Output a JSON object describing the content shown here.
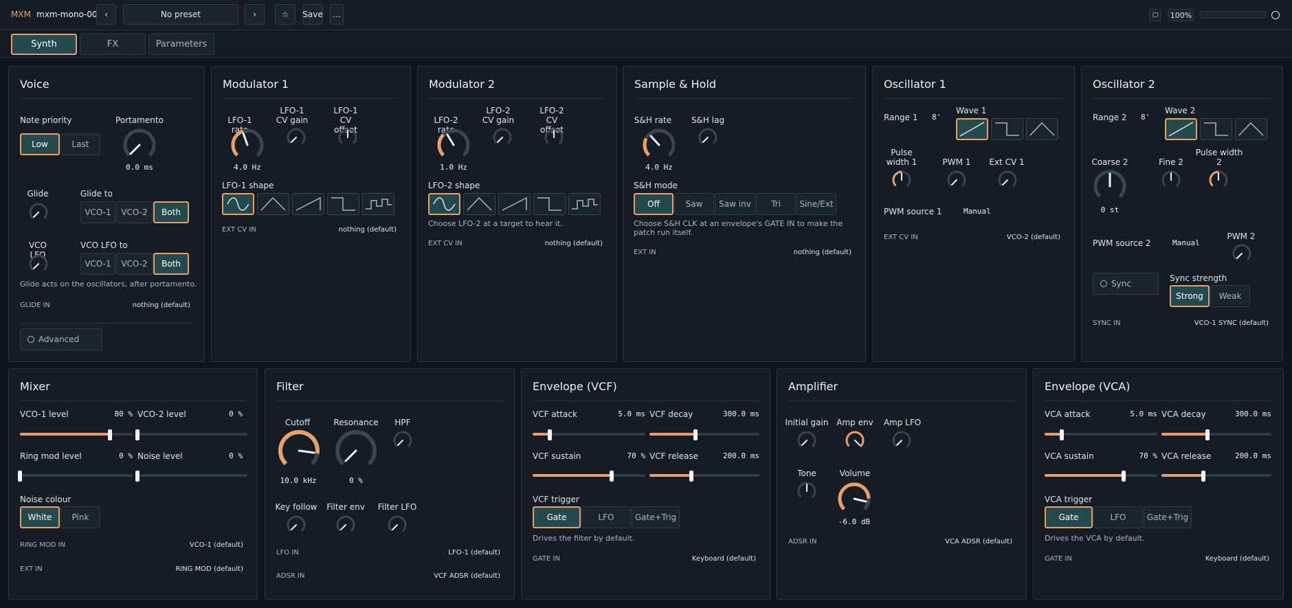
{
  "top": {
    "logo": "MXM",
    "name": "mxm-mono-00",
    "prev": "‹",
    "preset": "No preset",
    "next": "›",
    "save": "Save",
    "more": "…",
    "zoom": "100%"
  },
  "tabs": [
    "Synth",
    "FX",
    "Parameters"
  ],
  "voice": {
    "title": "Voice",
    "note_priority": "Note priority",
    "low": "Low",
    "last": "Last",
    "portamento": "Portamento",
    "portamento_val": "0.0 ms",
    "glide": "Glide",
    "glide_to": "Glide to",
    "vco1": "VCO-1",
    "vco2": "VCO-2",
    "both": "Both",
    "vco_lfo": "VCO LFO",
    "vco_lfo_to": "VCO LFO to",
    "note": "Glide acts on the oscillators, after portamento.",
    "glide_in": "GLIDE IN",
    "glide_in_val": "nothing (default)",
    "advanced": "Advanced"
  },
  "mod1": {
    "title": "Modulator 1",
    "rate": "LFO-1 rate",
    "rate_val": "4.0 Hz",
    "gain": "LFO-1 CV gain",
    "offset": "LFO-1 CV offset",
    "shape": "LFO-1 shape",
    "ext": "EXT CV IN",
    "ext_val": "nothing (default)"
  },
  "mod2": {
    "title": "Modulator 2",
    "rate": "LFO-2 rate",
    "rate_val": "1.0 Hz",
    "gain": "LFO-2 CV gain",
    "offset": "LFO-2 CV offset",
    "shape": "LFO-2 shape",
    "note": "Choose LFO-2 at a target to hear it.",
    "ext": "EXT CV IN",
    "ext_val": "nothing (default)"
  },
  "sh": {
    "title": "Sample & Hold",
    "rate": "S&H rate",
    "rate_val": "4.0 Hz",
    "lag": "S&H lag",
    "mode": "S&H mode",
    "modes": [
      "Off",
      "Saw",
      "Saw inv",
      "Tri",
      "Sine/Ext"
    ],
    "note": "Choose S&H CLK at an envelope's GATE IN to make the patch run itself.",
    "ext": "EXT IN",
    "ext_val": "nothing (default)"
  },
  "osc1": {
    "title": "Oscillator 1",
    "range": "Range 1",
    "range_val": "8'",
    "wave": "Wave 1",
    "pw": "Pulse width 1",
    "pwm": "PWM 1",
    "extcv": "Ext CV 1",
    "pwm_src": "PWM source 1",
    "pwm_src_val": "Manual",
    "ext": "EXT CV IN",
    "ext_val": "VCO-2 (default)"
  },
  "osc2": {
    "title": "Oscillator 2",
    "range": "Range 2",
    "range_val": "8'",
    "wave": "Wave 2",
    "coarse": "Coarse 2",
    "coarse_val": "0 st",
    "fine": "Fine 2",
    "pw": "Pulse width 2",
    "pwm_src": "PWM source 2",
    "pwm_src_val": "Manual",
    "pwm": "PWM 2",
    "sync": "Sync",
    "sync_strength": "Sync strength",
    "strong": "Strong",
    "weak": "Weak",
    "sync_in": "SYNC IN",
    "sync_in_val": "VCO-1 SYNC (default)"
  },
  "mixer": {
    "title": "Mixer",
    "vco1": "VCO-1 level",
    "vco1_val": "80 %",
    "vco2": "VCO-2 level",
    "vco2_val": "0 %",
    "ring": "Ring mod level",
    "ring_val": "0 %",
    "noise": "Noise level",
    "noise_val": "0 %",
    "noise_colour": "Noise colour",
    "white": "White",
    "pink": "Pink",
    "ring_in": "RING MOD IN",
    "ring_in_val": "VCO-1 (default)",
    "ext_in": "EXT IN",
    "ext_in_val": "RING MOD (default)",
    "levels": {
      "vco1": 0.8,
      "vco2": 0,
      "ring": 0,
      "noise": 0
    }
  },
  "filter": {
    "title": "Filter",
    "cutoff": "Cutoff",
    "cutoff_val": "10.0 kHz",
    "res": "Resonance",
    "res_val": "0 %",
    "hpf": "HPF",
    "keyf": "Key follow",
    "fenv": "Filter env",
    "flfo": "Filter LFO",
    "lfo_in": "LFO IN",
    "lfo_in_val": "LFO-1 (default)",
    "adsr_in": "ADSR IN",
    "adsr_in_val": "VCF ADSR (default)"
  },
  "envf": {
    "title": "Envelope (VCF)",
    "attack": "VCF attack",
    "attack_val": "5.0 ms",
    "decay": "VCF decay",
    "decay_val": "300.0 ms",
    "sustain": "VCF sustain",
    "sustain_val": "70 %",
    "release": "VCF release",
    "release_val": "200.0 ms",
    "trigger": "VCF trigger",
    "gate": "Gate",
    "lfo": "LFO",
    "gt": "Gate+Trig",
    "note": "Drives the filter by default.",
    "gate_in": "GATE IN",
    "gate_in_val": "Keyboard (default)",
    "levels": {
      "attack": 0.15,
      "decay": 0.42,
      "sustain": 0.7,
      "release": 0.38
    }
  },
  "amp": {
    "title": "Amplifier",
    "init": "Initial gain",
    "ampenv": "Amp env",
    "amplfo": "Amp LFO",
    "tone": "Tone",
    "vol": "Volume",
    "vol_val": "-6.0 dB",
    "adsr_in": "ADSR IN",
    "adsr_in_val": "VCA ADSR (default)"
  },
  "enva": {
    "title": "Envelope (VCA)",
    "attack": "VCA attack",
    "attack_val": "5.0 ms",
    "decay": "VCA decay",
    "decay_val": "300.0 ms",
    "sustain": "VCA sustain",
    "sustain_val": "70 %",
    "release": "VCA release",
    "release_val": "200.0 ms",
    "trigger": "VCA trigger",
    "gate": "Gate",
    "lfo": "LFO",
    "gt": "Gate+Trig",
    "note": "Drives the VCA by default.",
    "gate_in": "GATE IN",
    "gate_in_val": "Keyboard (default)",
    "levels": {
      "attack": 0.15,
      "decay": 0.42,
      "sustain": 0.7,
      "release": 0.38
    }
  },
  "colors": {
    "accent": "#e8a06a",
    "active_bg": "#244a4d",
    "panel": "#151c23"
  }
}
